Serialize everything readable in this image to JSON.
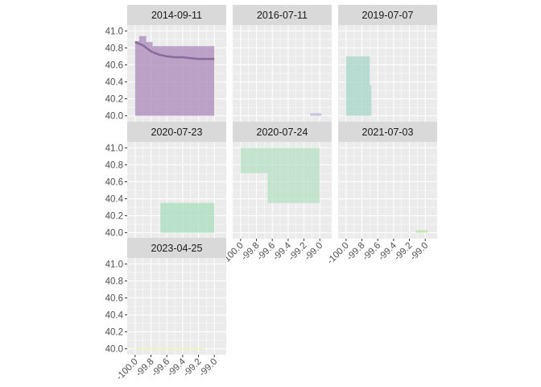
{
  "chart_data": {
    "type": "area",
    "chart_kind": "faceted map plot (small multiples) of shaded extents per date",
    "title": "",
    "xlabel": "",
    "ylabel": "",
    "xlim": [
      -100.1,
      -98.85
    ],
    "ylim": [
      39.93,
      41.07
    ],
    "x_ticks": [
      -100.0,
      -99.8,
      -99.6,
      -99.4,
      -99.2,
      -99.0
    ],
    "x_tick_labels": [
      "-100.0",
      "-99.8",
      "-99.6",
      "-99.4",
      "-99.2",
      "-99.0"
    ],
    "y_ticks": [
      40.0,
      40.2,
      40.4,
      40.6,
      40.8,
      41.0
    ],
    "y_tick_labels": [
      "40.0",
      "40.2",
      "40.4",
      "40.6",
      "40.8",
      "41.0"
    ],
    "grid": true,
    "legend": "none",
    "ncol": 3,
    "panel_background": "#ebebeb",
    "strip_background": "#d9d9d9",
    "grid_color": "#ffffff",
    "facets": [
      {
        "label": "2014-09-11",
        "color": "#aa88b8",
        "polygons": [
          [
            [
              -100.0,
              40.88
            ],
            [
              -99.95,
              40.88
            ],
            [
              -99.95,
              40.94
            ],
            [
              -99.86,
              40.94
            ],
            [
              -99.86,
              40.87
            ],
            [
              -99.78,
              40.87
            ],
            [
              -99.78,
              40.82
            ],
            [
              -99.0,
              40.82
            ],
            [
              -99.0,
              40.0
            ],
            [
              -100.0,
              40.0
            ]
          ]
        ],
        "line": {
          "color": "#8a6a9c",
          "points": [
            [
              -100.0,
              40.87
            ],
            [
              -99.9,
              40.83
            ],
            [
              -99.8,
              40.76
            ],
            [
              -99.7,
              40.72
            ],
            [
              -99.6,
              40.7
            ],
            [
              -99.5,
              40.69
            ],
            [
              -99.4,
              40.69
            ],
            [
              -99.3,
              40.68
            ],
            [
              -99.2,
              40.67
            ],
            [
              -99.1,
              40.67
            ],
            [
              -99.0,
              40.67
            ]
          ]
        }
      },
      {
        "label": "2016-07-11",
        "color": "#b7b4d8",
        "polygons": [
          [
            [
              -99.12,
              40.0
            ],
            [
              -98.98,
              40.0
            ],
            [
              -98.98,
              40.03
            ],
            [
              -99.12,
              40.03
            ]
          ]
        ]
      },
      {
        "label": "2019-07-07",
        "color": "#a6d5c8",
        "polygons": [
          [
            [
              -100.0,
              40.0
            ],
            [
              -99.68,
              40.0
            ],
            [
              -99.68,
              40.36
            ],
            [
              -99.7,
              40.36
            ],
            [
              -99.7,
              40.7
            ],
            [
              -100.0,
              40.7
            ]
          ]
        ]
      },
      {
        "label": "2020-07-23",
        "color": "#a8dcbc",
        "polygons": [
          [
            [
              -99.68,
              40.0
            ],
            [
              -99.0,
              40.0
            ],
            [
              -99.0,
              40.35
            ],
            [
              -99.68,
              40.35
            ]
          ]
        ]
      },
      {
        "label": "2020-07-24",
        "color": "#b5e0c5",
        "polygons": [
          [
            [
              -100.0,
              40.7
            ],
            [
              -100.0,
              41.0
            ],
            [
              -99.0,
              41.0
            ],
            [
              -99.0,
              40.35
            ],
            [
              -99.66,
              40.35
            ],
            [
              -99.66,
              40.7
            ]
          ]
        ]
      },
      {
        "label": "2021-07-03",
        "color": "#b8e3a6",
        "polygons": [
          [
            [
              -99.12,
              40.0
            ],
            [
              -98.97,
              40.0
            ],
            [
              -98.97,
              40.03
            ],
            [
              -99.12,
              40.03
            ]
          ]
        ]
      },
      {
        "label": "2023-04-25",
        "color": "#f2f0b0",
        "polygons": [
          [
            [
              -100.0,
              39.99
            ],
            [
              -99.12,
              39.99
            ],
            [
              -99.12,
              40.01
            ],
            [
              -100.0,
              40.01
            ]
          ]
        ]
      }
    ]
  }
}
